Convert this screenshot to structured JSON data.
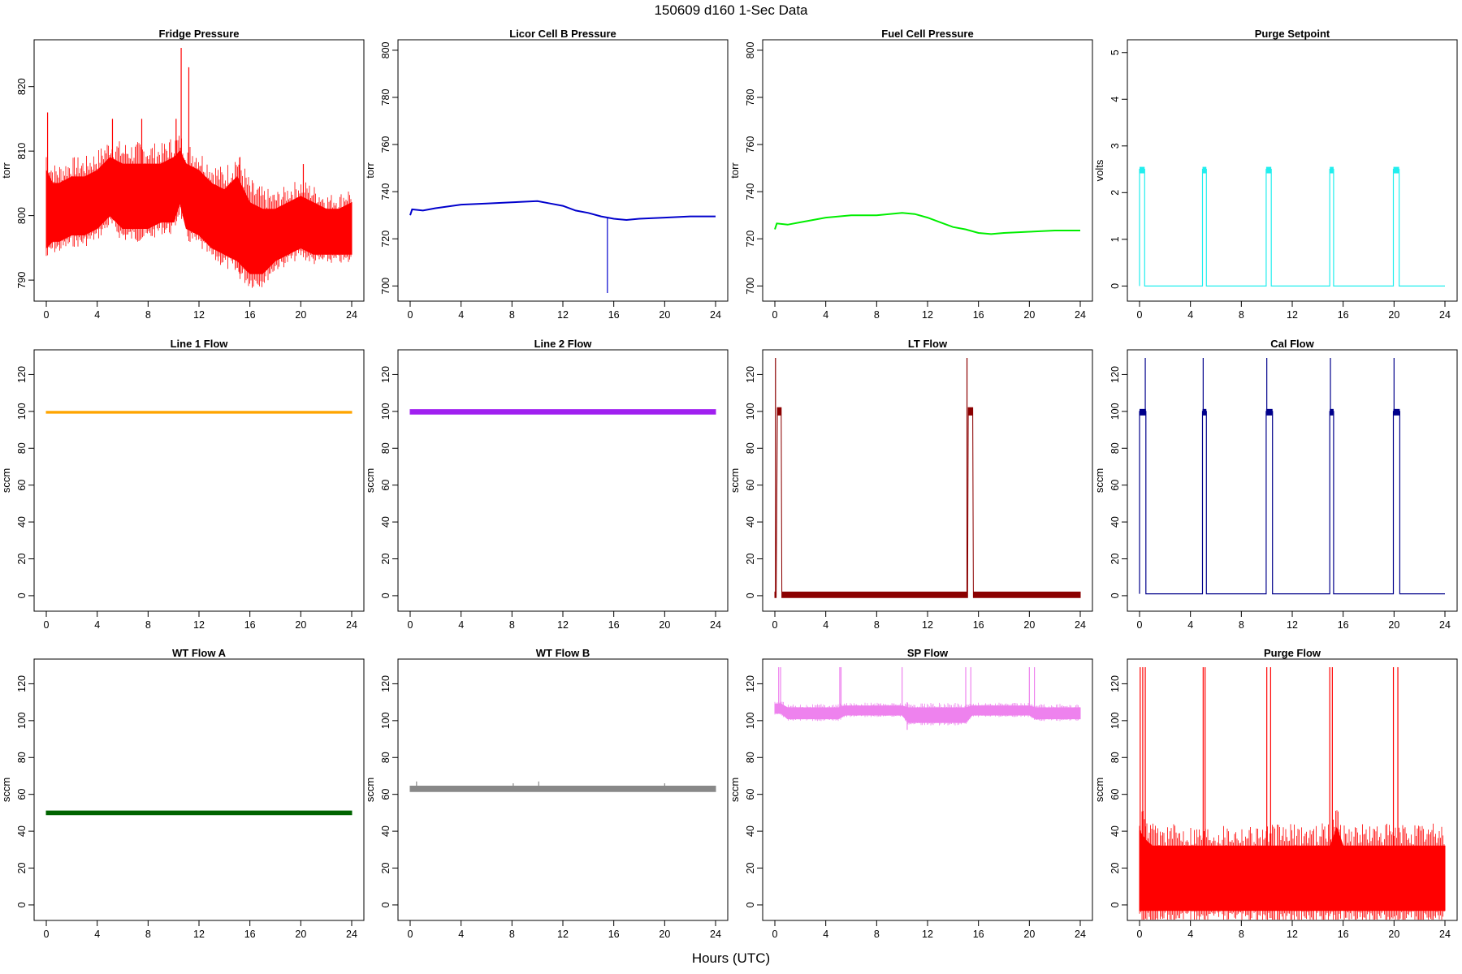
{
  "figure": {
    "title": "150609   d160   1-Sec Data",
    "xlabel": "Hours (UTC)"
  },
  "chart_data": [
    {
      "type": "line",
      "title": "Fridge Pressure",
      "xlabel": "",
      "ylabel": "torr",
      "xlim": [
        0,
        24
      ],
      "ylim": [
        788,
        826
      ],
      "xticks": [
        0,
        4,
        8,
        12,
        16,
        20,
        24
      ],
      "yticks": [
        790,
        800,
        810,
        820
      ],
      "color": "#ff0000",
      "series": [
        {
          "style": "band",
          "x": [
            0,
            0.5,
            1,
            2,
            3,
            4,
            5,
            6,
            7,
            8,
            9,
            10,
            10.5,
            11,
            12,
            13,
            14,
            15,
            16,
            17,
            18,
            19,
            20,
            21,
            22,
            23,
            24
          ],
          "lo": [
            795,
            796,
            796,
            797,
            797,
            798,
            800,
            798,
            798,
            798,
            799,
            799,
            802,
            798,
            797,
            795,
            794,
            793,
            791,
            791,
            793,
            794,
            795,
            794,
            794,
            794,
            794
          ],
          "hi": [
            807,
            805,
            805,
            806,
            806,
            807,
            809,
            808,
            808,
            808,
            808,
            809,
            810,
            808,
            807,
            805,
            804,
            806,
            802,
            801,
            801,
            802,
            803,
            802,
            801,
            801,
            802
          ]
        },
        {
          "style": "spikes",
          "x": [
            0.1,
            5.2,
            7.5,
            10.2,
            10.6,
            11.2,
            15.2,
            20.2
          ],
          "lo": [
            795,
            800,
            800,
            802,
            802,
            798,
            791,
            795
          ],
          "hi": [
            816,
            815,
            815,
            815,
            826,
            823,
            809,
            808
          ]
        }
      ]
    },
    {
      "type": "line",
      "title": "Licor Cell B Pressure",
      "xlabel": "",
      "ylabel": "torr",
      "xlim": [
        0,
        24
      ],
      "ylim": [
        697,
        801
      ],
      "xticks": [
        0,
        4,
        8,
        12,
        16,
        20,
        24
      ],
      "yticks": [
        700,
        720,
        740,
        760,
        780,
        800
      ],
      "color": "#0000cc",
      "series": [
        {
          "style": "line",
          "x": [
            0,
            0.15,
            1,
            2,
            4,
            6,
            8,
            10,
            11,
            12,
            13,
            14,
            15,
            16,
            17,
            18,
            20,
            22,
            24
          ],
          "y": [
            730,
            732.5,
            732,
            733,
            734.5,
            735,
            735.5,
            736,
            735,
            734,
            732,
            731,
            729.5,
            728.5,
            728,
            728.5,
            729,
            729.5,
            729.5
          ]
        },
        {
          "style": "spikes",
          "x": [
            15.5
          ],
          "lo": [
            697
          ],
          "hi": [
            729
          ]
        }
      ]
    },
    {
      "type": "line",
      "title": "Fuel Cell Pressure",
      "xlabel": "",
      "ylabel": "torr",
      "xlim": [
        0,
        24
      ],
      "ylim": [
        697,
        801
      ],
      "xticks": [
        0,
        4,
        8,
        12,
        16,
        20,
        24
      ],
      "yticks": [
        700,
        720,
        740,
        760,
        780,
        800
      ],
      "color": "#00ee00",
      "series": [
        {
          "style": "line",
          "x": [
            0,
            0.15,
            1,
            2,
            4,
            6,
            8,
            10,
            11,
            12,
            13,
            14,
            15,
            16,
            17,
            18,
            20,
            22,
            24
          ],
          "y": [
            724,
            726.5,
            726,
            727,
            729,
            730,
            730,
            731,
            730.5,
            729,
            727,
            725,
            724,
            722.5,
            722,
            722.5,
            723,
            723.5,
            723.5
          ]
        }
      ]
    },
    {
      "type": "line",
      "title": "Purge Setpoint",
      "xlabel": "",
      "ylabel": "volts",
      "xlim": [
        0,
        24
      ],
      "ylim": [
        -0.15,
        5.1
      ],
      "xticks": [
        0,
        4,
        8,
        12,
        16,
        20,
        24
      ],
      "yticks": [
        0,
        1,
        2,
        3,
        4,
        5
      ],
      "color": "#22eeee",
      "series": [
        {
          "style": "pulses",
          "baseline": 0,
          "starts": [
            0,
            4.95,
            9.95,
            14.95,
            19.95
          ],
          "widths": [
            0.4,
            0.3,
            0.4,
            0.3,
            0.45
          ],
          "levels": [
            2.5,
            2.5,
            2.5,
            2.5,
            2.5
          ]
        }
      ]
    },
    {
      "type": "line",
      "title": "Line 1 Flow",
      "xlabel": "",
      "ylabel": "sccm",
      "xlim": [
        0,
        24
      ],
      "ylim": [
        -4,
        129
      ],
      "xticks": [
        0,
        4,
        8,
        12,
        16,
        20,
        24
      ],
      "yticks": [
        0,
        20,
        40,
        60,
        80,
        100,
        120
      ],
      "color": "#ffa500",
      "series": [
        {
          "style": "band",
          "x": [
            0,
            24
          ],
          "lo": [
            99,
            99
          ],
          "hi": [
            100,
            100
          ]
        }
      ]
    },
    {
      "type": "line",
      "title": "Line 2 Flow",
      "xlabel": "",
      "ylabel": "sccm",
      "xlim": [
        0,
        24
      ],
      "ylim": [
        -4,
        129
      ],
      "xticks": [
        0,
        4,
        8,
        12,
        16,
        20,
        24
      ],
      "yticks": [
        0,
        20,
        40,
        60,
        80,
        100,
        120
      ],
      "color": "#a020f0",
      "series": [
        {
          "style": "band",
          "x": [
            0,
            24
          ],
          "lo": [
            98.5,
            98.5
          ],
          "hi": [
            101,
            101
          ]
        }
      ]
    },
    {
      "type": "line",
      "title": "LT Flow",
      "xlabel": "",
      "ylabel": "sccm",
      "xlim": [
        0,
        24
      ],
      "ylim": [
        -4,
        129
      ],
      "xticks": [
        0,
        4,
        8,
        12,
        16,
        20,
        24
      ],
      "yticks": [
        0,
        20,
        40,
        60,
        80,
        100,
        120
      ],
      "color": "#8b0000",
      "series": [
        {
          "style": "band",
          "x": [
            0,
            0.1,
            0.2,
            0.5,
            0.55,
            15.15,
            15.2,
            15.55,
            15.6,
            24
          ],
          "lo": [
            -1,
            -1,
            98,
            98,
            -1,
            -1,
            98,
            98,
            -1,
            -1
          ],
          "hi": [
            2,
            2,
            102,
            102,
            2,
            2,
            102,
            102,
            2,
            2
          ]
        },
        {
          "style": "spikes",
          "x": [
            0.05,
            15.1
          ],
          "lo": [
            0,
            0
          ],
          "hi": [
            129,
            129
          ]
        }
      ]
    },
    {
      "type": "line",
      "title": "Cal Flow",
      "xlabel": "",
      "ylabel": "sccm",
      "xlim": [
        0,
        24
      ],
      "ylim": [
        -4,
        129
      ],
      "xticks": [
        0,
        4,
        8,
        12,
        16,
        20,
        24
      ],
      "yticks": [
        0,
        20,
        40,
        60,
        80,
        100,
        120
      ],
      "color": "#00008b",
      "series": [
        {
          "style": "pulses",
          "baseline": 1,
          "starts": [
            0,
            4.95,
            9.95,
            14.95,
            19.95
          ],
          "widths": [
            0.5,
            0.3,
            0.5,
            0.3,
            0.5
          ],
          "levels": [
            100,
            100,
            100,
            100,
            100
          ]
        },
        {
          "style": "spikes",
          "x": [
            0.45,
            5.0,
            10.0,
            15.0,
            20.0
          ],
          "lo": [
            100,
            100,
            100,
            100,
            100
          ],
          "hi": [
            129,
            129,
            129,
            129,
            129
          ]
        }
      ]
    },
    {
      "type": "line",
      "title": "WT Flow A",
      "xlabel": "",
      "ylabel": "sccm",
      "xlim": [
        0,
        24
      ],
      "ylim": [
        -4,
        129
      ],
      "xticks": [
        0,
        4,
        8,
        12,
        16,
        20,
        24
      ],
      "yticks": [
        0,
        20,
        40,
        60,
        80,
        100,
        120
      ],
      "color": "#006400",
      "series": [
        {
          "style": "band",
          "x": [
            0,
            24
          ],
          "lo": [
            49,
            49
          ],
          "hi": [
            51,
            51
          ]
        }
      ]
    },
    {
      "type": "line",
      "title": "WT Flow B",
      "xlabel": "",
      "ylabel": "sccm",
      "xlim": [
        0,
        24
      ],
      "ylim": [
        -4,
        129
      ],
      "xticks": [
        0,
        4,
        8,
        12,
        16,
        20,
        24
      ],
      "yticks": [
        0,
        20,
        40,
        60,
        80,
        100,
        120
      ],
      "color": "#888888",
      "series": [
        {
          "style": "band",
          "x": [
            0,
            24
          ],
          "lo": [
            61.5,
            61.5
          ],
          "hi": [
            64.5,
            64.5
          ]
        },
        {
          "style": "spikes",
          "x": [
            0.5,
            8.1,
            10.1,
            20.0
          ],
          "lo": [
            63,
            63,
            63,
            63
          ],
          "hi": [
            67,
            66,
            67,
            66
          ]
        }
      ]
    },
    {
      "type": "line",
      "title": "SP Flow",
      "xlabel": "",
      "ylabel": "sccm",
      "xlim": [
        0,
        24
      ],
      "ylim": [
        -4,
        129
      ],
      "xticks": [
        0,
        4,
        8,
        12,
        16,
        20,
        24
      ],
      "yticks": [
        0,
        20,
        40,
        60,
        80,
        100,
        120
      ],
      "color": "#ee82ee",
      "series": [
        {
          "style": "band",
          "x": [
            0,
            0.5,
            1,
            5,
            5.5,
            10,
            10.5,
            15,
            15.5,
            20,
            20.5,
            24
          ],
          "lo": [
            104,
            104,
            101,
            101,
            103,
            103,
            99,
            99,
            103,
            103,
            101,
            101
          ],
          "hi": [
            109,
            109,
            107,
            107,
            108,
            108,
            107,
            107,
            108,
            108,
            107,
            107
          ]
        },
        {
          "style": "spikes",
          "x": [
            0.3,
            0.45,
            5.1,
            5.2,
            10.0,
            10.4,
            15.0,
            15.4,
            20.0,
            20.4
          ],
          "lo": [
            105,
            105,
            105,
            105,
            105,
            95,
            105,
            105,
            105,
            105
          ],
          "hi": [
            129,
            129,
            129,
            129,
            129,
            110,
            129,
            129,
            129,
            129
          ]
        }
      ]
    },
    {
      "type": "line",
      "title": "Purge Flow",
      "xlabel": "",
      "ylabel": "sccm",
      "xlim": [
        0,
        24
      ],
      "ylim": [
        -4,
        129
      ],
      "xticks": [
        0,
        4,
        8,
        12,
        16,
        20,
        24
      ],
      "yticks": [
        0,
        20,
        40,
        60,
        80,
        100,
        120
      ],
      "color": "#ff0000",
      "series": [
        {
          "style": "band",
          "x": [
            0,
            0.5,
            1,
            15,
            15.5,
            16,
            24
          ],
          "lo": [
            -3,
            -3,
            -3,
            -3,
            -3,
            -3,
            -3
          ],
          "hi": [
            40,
            35,
            32,
            32,
            42,
            32,
            32
          ]
        },
        {
          "style": "spikes",
          "x": [
            0.05,
            0.25,
            0.45,
            5.0,
            5.15,
            10.0,
            10.3,
            14.95,
            15.15,
            19.95,
            20.3
          ],
          "lo": [
            -3,
            -3,
            -3,
            -3,
            -3,
            -3,
            -3,
            -3,
            -3,
            -3,
            -3
          ],
          "hi": [
            129,
            129,
            129,
            129,
            129,
            129,
            129,
            129,
            129,
            129,
            129
          ]
        }
      ]
    }
  ]
}
